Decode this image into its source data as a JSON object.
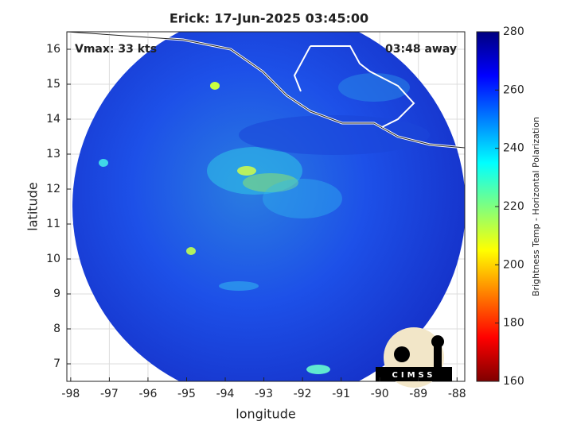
{
  "map": {
    "title": "Erick: 17-Jun-2025 03:45:00",
    "annotation_left": "Vmax: 33 kts",
    "annotation_right": "03:48 away",
    "xlabel": "longitude",
    "ylabel": "latitude",
    "xlim": [
      -98.1,
      -87.8
    ],
    "ylim": [
      6.5,
      16.5
    ],
    "xticks": [
      -98,
      -97,
      -96,
      -95,
      -94,
      -93,
      -92,
      -91,
      -90,
      -89,
      -88
    ],
    "yticks": [
      7,
      8,
      9,
      10,
      11,
      12,
      13,
      14,
      15,
      16
    ],
    "grid": true,
    "colorbar": {
      "label": "Brightness Temp - Horizontal Polarization",
      "lim": [
        160,
        280
      ],
      "ticks": [
        160,
        180,
        200,
        220,
        240,
        260,
        280
      ],
      "colors": [
        "#7f0000",
        "#ff0000",
        "#ff7f00",
        "#ffff00",
        "#7fff7f",
        "#00ffff",
        "#007fff",
        "#0000ff",
        "#00007f"
      ]
    },
    "logo": "CIMSS"
  }
}
